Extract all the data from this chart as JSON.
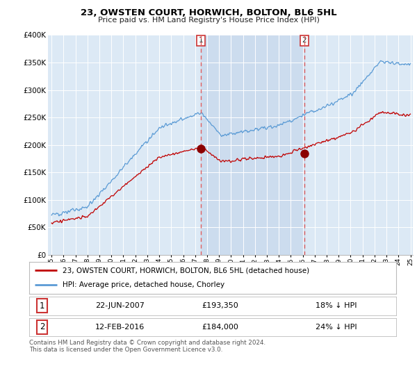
{
  "title": "23, OWSTEN COURT, HORWICH, BOLTON, BL6 5HL",
  "subtitle": "Price paid vs. HM Land Registry's House Price Index (HPI)",
  "legend_line1": "23, OWSTEN COURT, HORWICH, BOLTON, BL6 5HL (detached house)",
  "legend_line2": "HPI: Average price, detached house, Chorley",
  "transaction1_date": "22-JUN-2007",
  "transaction1_price": "£193,350",
  "transaction1_hpi": "18% ↓ HPI",
  "transaction2_date": "12-FEB-2016",
  "transaction2_price": "£184,000",
  "transaction2_hpi": "24% ↓ HPI",
  "footnote": "Contains HM Land Registry data © Crown copyright and database right 2024.\nThis data is licensed under the Open Government Licence v3.0.",
  "hpi_color": "#5b9bd5",
  "price_color": "#c00000",
  "marker_color": "#8b0000",
  "vline_color": "#e06060",
  "shade_color": "#ccdcee",
  "plot_bg_color": "#dce9f5",
  "ylim": [
    0,
    400000
  ],
  "yticks": [
    0,
    50000,
    100000,
    150000,
    200000,
    250000,
    300000,
    350000,
    400000
  ],
  "year_start": 1995,
  "year_end": 2025,
  "transaction1_year": 2007.47,
  "transaction2_year": 2016.12,
  "transaction1_price_val": 193350,
  "transaction2_price_val": 184000
}
